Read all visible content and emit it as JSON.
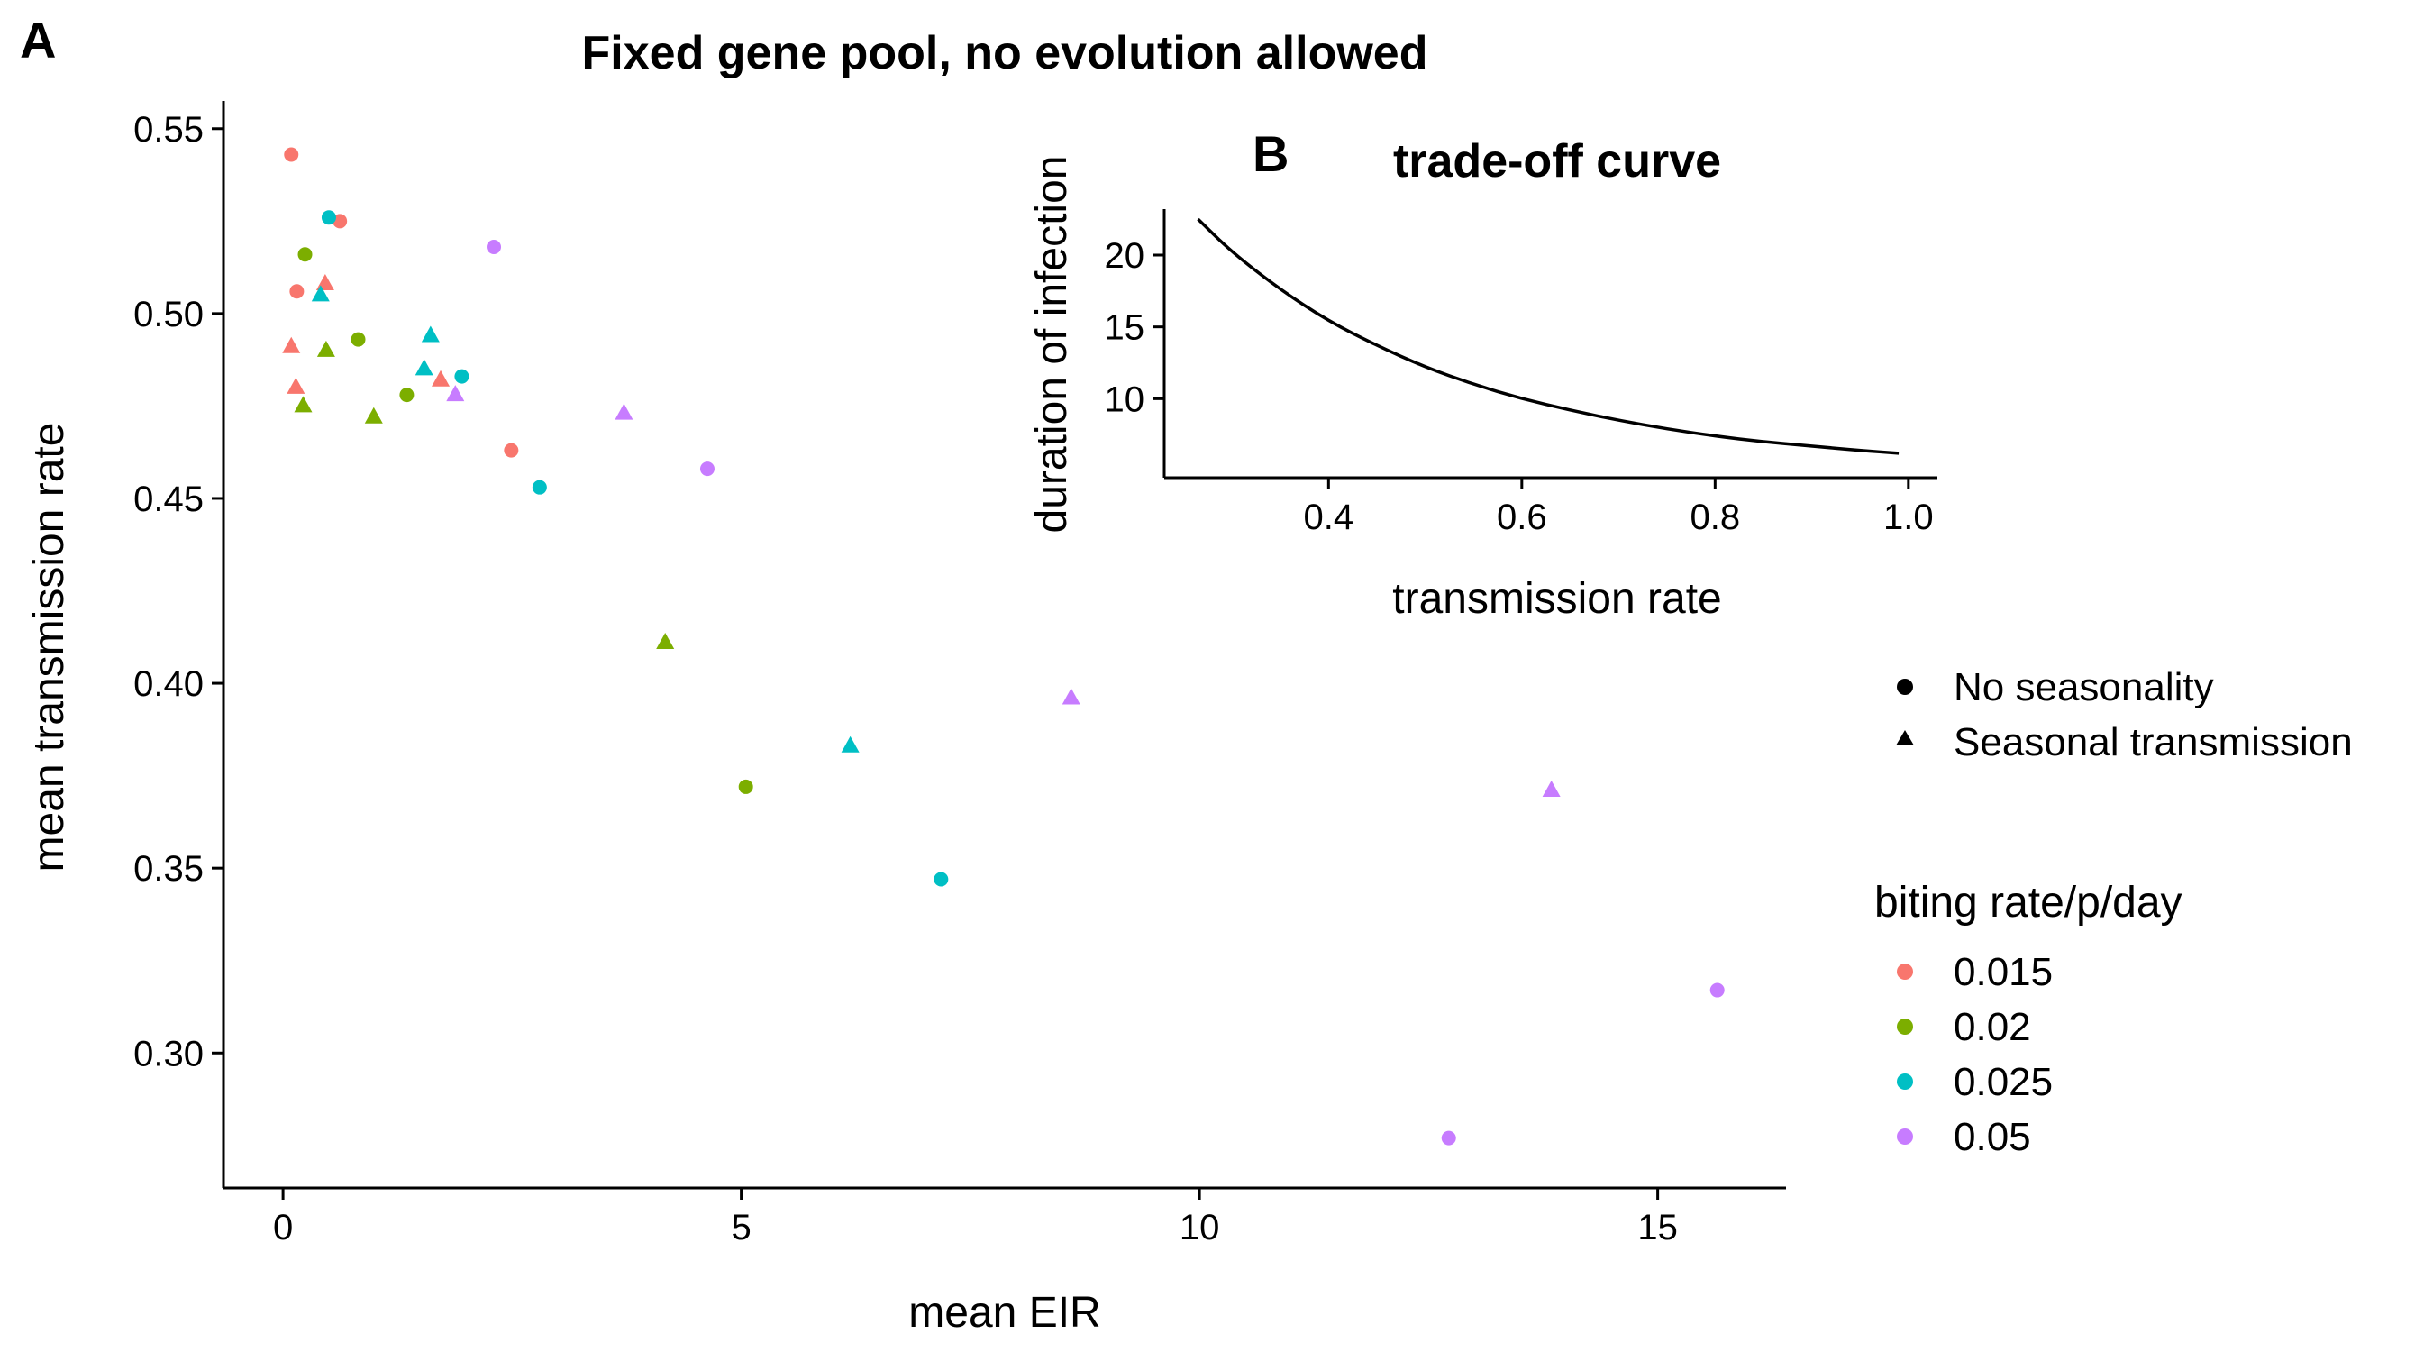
{
  "panels": {
    "main_tag": "A",
    "inset_tag": "B"
  },
  "legend": {
    "shape_entries": [
      {
        "label": "No seasonality",
        "shape": "circle"
      },
      {
        "label": "Seasonal transmission",
        "shape": "triangle"
      }
    ],
    "color_title": "biting rate/p/day",
    "color_entries": [
      {
        "label": "0.015",
        "color": "#F8766D"
      },
      {
        "label": "0.02",
        "color": "#7CAE00"
      },
      {
        "label": "0.025",
        "color": "#00BFC4"
      },
      {
        "label": "0.05",
        "color": "#C77CFF"
      }
    ]
  },
  "chart_data": [
    {
      "type": "scatter",
      "title": "Fixed gene pool, no evolution allowed",
      "xlabel": "mean EIR",
      "ylabel": "mean transmission rate",
      "xlim": [
        -0.65,
        16.4
      ],
      "ylim": [
        0.2635,
        0.5575
      ],
      "xticks": [
        0,
        5,
        10,
        15
      ],
      "yticks": [
        0.3,
        0.35,
        0.4,
        0.45,
        0.5,
        0.55
      ],
      "ytick_labels": [
        "0.30",
        "0.35",
        "0.40",
        "0.45",
        "0.50",
        "0.55"
      ],
      "grid": false,
      "legend_position": "right",
      "series": [
        {
          "name": "0.015",
          "color": "#F8766D",
          "points": [
            {
              "x": 0.09,
              "y": 0.543,
              "shape": "circle"
            },
            {
              "x": 0.15,
              "y": 0.506,
              "shape": "circle"
            },
            {
              "x": 0.62,
              "y": 0.525,
              "shape": "circle"
            },
            {
              "x": 2.49,
              "y": 0.463,
              "shape": "circle"
            },
            {
              "x": 0.09,
              "y": 0.491,
              "shape": "triangle"
            },
            {
              "x": 0.14,
              "y": 0.48,
              "shape": "triangle"
            },
            {
              "x": 0.46,
              "y": 0.508,
              "shape": "triangle"
            },
            {
              "x": 1.72,
              "y": 0.482,
              "shape": "triangle"
            }
          ]
        },
        {
          "name": "0.02",
          "color": "#7CAE00",
          "points": [
            {
              "x": 0.24,
              "y": 0.516,
              "shape": "circle"
            },
            {
              "x": 0.82,
              "y": 0.493,
              "shape": "circle"
            },
            {
              "x": 1.35,
              "y": 0.478,
              "shape": "circle"
            },
            {
              "x": 5.05,
              "y": 0.372,
              "shape": "circle"
            },
            {
              "x": 0.22,
              "y": 0.475,
              "shape": "triangle"
            },
            {
              "x": 0.47,
              "y": 0.49,
              "shape": "triangle"
            },
            {
              "x": 0.99,
              "y": 0.472,
              "shape": "triangle"
            },
            {
              "x": 4.17,
              "y": 0.411,
              "shape": "triangle"
            }
          ]
        },
        {
          "name": "0.025",
          "color": "#00BFC4",
          "points": [
            {
              "x": 0.5,
              "y": 0.526,
              "shape": "circle"
            },
            {
              "x": 1.95,
              "y": 0.483,
              "shape": "circle"
            },
            {
              "x": 2.8,
              "y": 0.453,
              "shape": "circle"
            },
            {
              "x": 7.18,
              "y": 0.347,
              "shape": "circle"
            },
            {
              "x": 0.41,
              "y": 0.505,
              "shape": "triangle"
            },
            {
              "x": 1.54,
              "y": 0.485,
              "shape": "triangle"
            },
            {
              "x": 1.61,
              "y": 0.494,
              "shape": "triangle"
            },
            {
              "x": 6.19,
              "y": 0.383,
              "shape": "triangle"
            }
          ]
        },
        {
          "name": "0.05",
          "color": "#C77CFF",
          "points": [
            {
              "x": 2.3,
              "y": 0.518,
              "shape": "circle"
            },
            {
              "x": 4.63,
              "y": 0.458,
              "shape": "circle"
            },
            {
              "x": 12.72,
              "y": 0.277,
              "shape": "circle"
            },
            {
              "x": 15.65,
              "y": 0.317,
              "shape": "circle"
            },
            {
              "x": 1.88,
              "y": 0.478,
              "shape": "triangle"
            },
            {
              "x": 3.72,
              "y": 0.473,
              "shape": "triangle"
            },
            {
              "x": 8.6,
              "y": 0.396,
              "shape": "triangle"
            },
            {
              "x": 13.84,
              "y": 0.371,
              "shape": "triangle"
            }
          ]
        }
      ]
    },
    {
      "type": "line",
      "title": "trade-off curve",
      "xlabel": "transmission rate",
      "ylabel": "duration of infection",
      "xlim": [
        0.23,
        1.03
      ],
      "ylim": [
        4.5,
        23.2
      ],
      "xticks": [
        0.4,
        0.6,
        0.8,
        1.0
      ],
      "xtick_labels": [
        "0.4",
        "0.6",
        "0.8",
        "1.0"
      ],
      "yticks": [
        10,
        15,
        20
      ],
      "grid": false,
      "series": [
        {
          "color": "#000000",
          "points": [
            {
              "x": 0.265,
              "y": 22.5
            },
            {
              "x": 0.3,
              "y": 20.2
            },
            {
              "x": 0.35,
              "y": 17.6
            },
            {
              "x": 0.4,
              "y": 15.4
            },
            {
              "x": 0.45,
              "y": 13.7
            },
            {
              "x": 0.5,
              "y": 12.2
            },
            {
              "x": 0.55,
              "y": 11.0
            },
            {
              "x": 0.6,
              "y": 10.0
            },
            {
              "x": 0.65,
              "y": 9.2
            },
            {
              "x": 0.7,
              "y": 8.5
            },
            {
              "x": 0.75,
              "y": 7.9
            },
            {
              "x": 0.8,
              "y": 7.4
            },
            {
              "x": 0.85,
              "y": 7.0
            },
            {
              "x": 0.9,
              "y": 6.7
            },
            {
              "x": 0.95,
              "y": 6.4
            },
            {
              "x": 0.99,
              "y": 6.2
            }
          ]
        }
      ]
    }
  ]
}
